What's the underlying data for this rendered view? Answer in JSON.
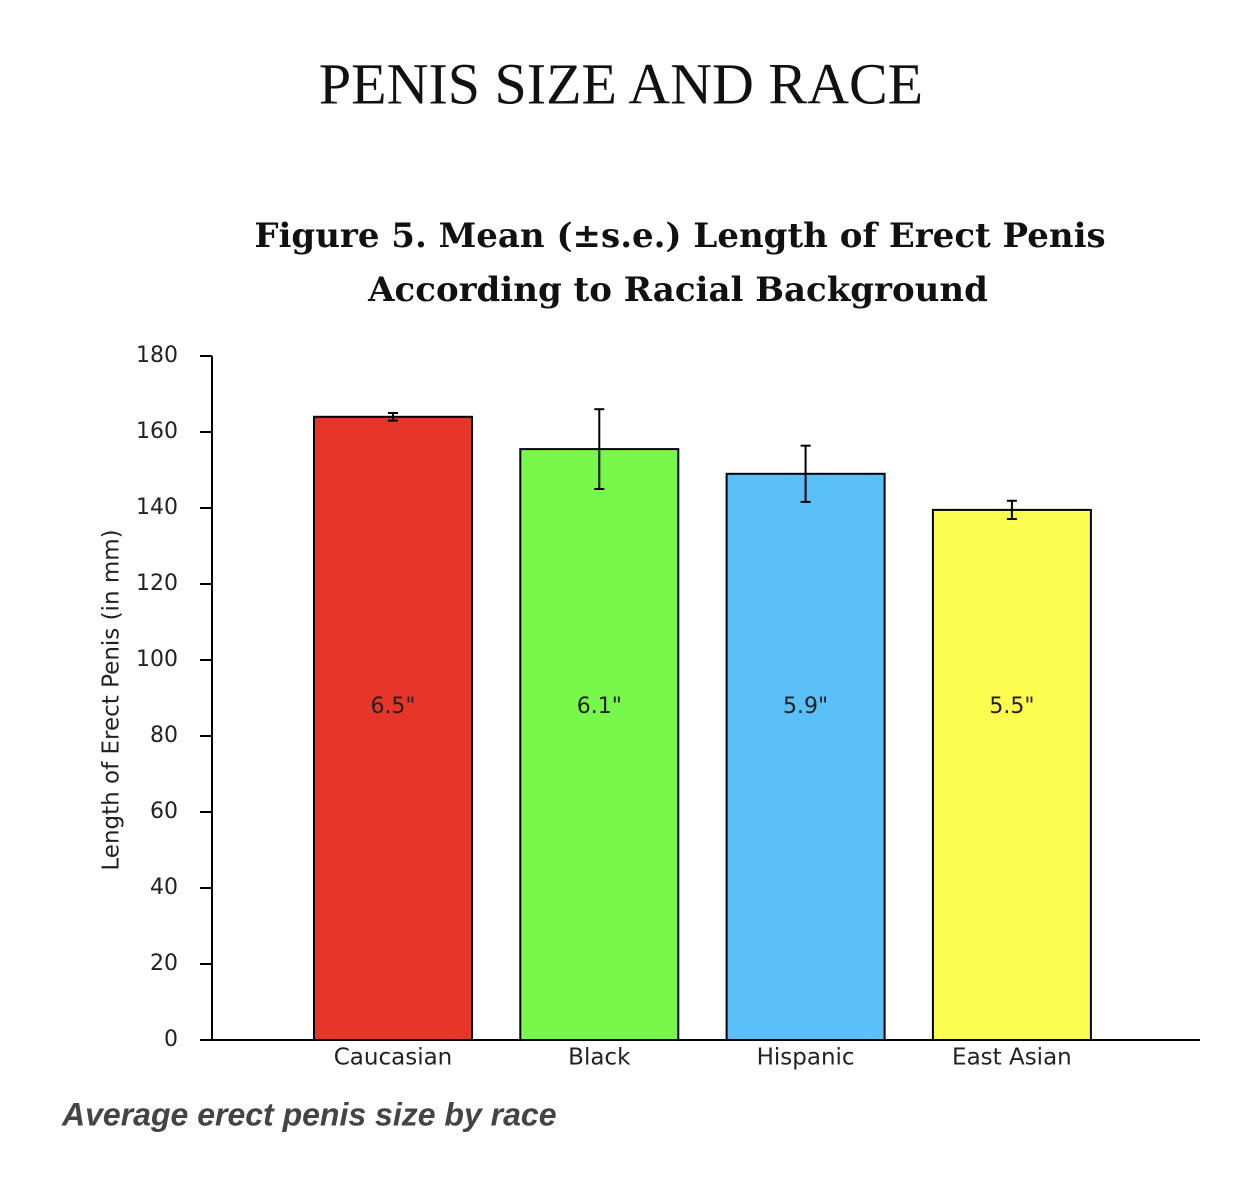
{
  "header": {
    "title": "PENIS SIZE AND RACE"
  },
  "chart_data": {
    "type": "bar",
    "title": [
      "Figure 5.  Mean (±s.e.) Length of Erect Penis",
      "According to Racial Background"
    ],
    "y_label": "Length of Erect Penis (in mm)",
    "categories": [
      "Caucasian",
      "Black",
      "Hispanic",
      "East Asian"
    ],
    "values": [
      164,
      155.5,
      149,
      139.5
    ],
    "errors": [
      1,
      10.5,
      7.4,
      2.4
    ],
    "value_labels": [
      "6.5\"",
      "6.1\"",
      "5.9\"",
      "5.5\""
    ],
    "colors": [
      "#e8352a",
      "#77f84a",
      "#5bc0f8",
      "#fdfd50"
    ],
    "ylim": [
      0,
      180
    ],
    "yticks": [
      0,
      20,
      40,
      60,
      80,
      100,
      120,
      140,
      160,
      180
    ],
    "grid": false
  },
  "caption": "Average erect penis size by race"
}
